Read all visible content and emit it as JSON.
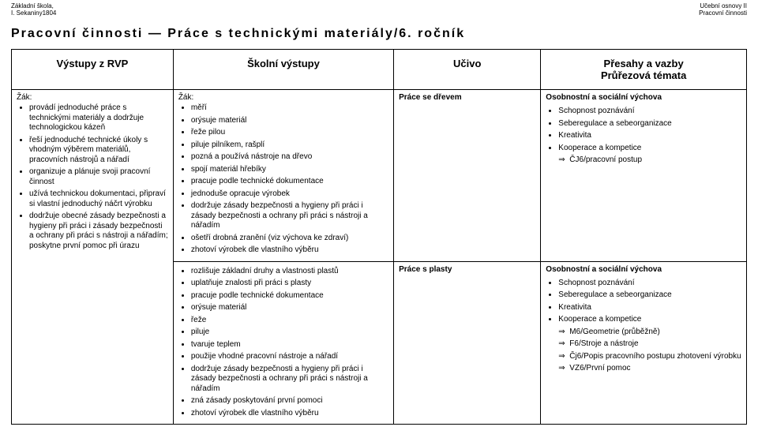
{
  "header": {
    "left_line1": "Základní škola,",
    "left_line2": "I. Sekaniny1804",
    "right_line1": "Učební osnovy II",
    "right_line2": "Pracovní činnosti"
  },
  "title": "Pracovní činnosti — Práce s technickými materiály/6. ročník",
  "columns": {
    "c0": "Výstupy z RVP",
    "c1": "Školní výstupy",
    "c2": "Učivo",
    "c3a": "Přesahy a vazby",
    "c3b": "Průřezová témata"
  },
  "rvp": {
    "lead": "Žák:",
    "items": [
      "provádí jednoduché práce s technickými materiály a dodržuje technologickou kázeň",
      "řeší jednoduché technické úkoly s vhodným výběrem materiálů, pracovních nástrojů a nářadí",
      "organizuje a plánuje svoji pracovní činnost",
      "užívá technickou dokumentaci, připraví si vlastní jednoduchý náčrt výrobku",
      "dodržuje obecné zásady bezpečnosti a hygieny při práci i zásady bezpečnosti a ochrany při práci s nástroji a nářadím; poskytne první pomoc při úrazu"
    ]
  },
  "skolni": {
    "lead": "Žák:",
    "block1": [
      "měří",
      "orýsuje materiál",
      "řeže pilou",
      "piluje pilníkem, rašplí",
      "pozná a používá nástroje na dřevo",
      "spojí materiál hřebíky",
      "pracuje podle technické dokumentace",
      "jednoduše opracuje výrobek",
      "dodržuje zásady bezpečnosti a hygieny při práci i zásady bezpečnosti a ochrany při práci s nástroji a nářadím",
      "ošetří drobná zranění (viz výchova ke zdraví)",
      "zhotoví výrobek dle vlastního výběru"
    ],
    "block2": [
      "rozlišuje základní druhy a vlastnosti plastů",
      "uplatňuje znalosti při práci s plasty",
      "pracuje podle technické dokumentace",
      "orýsuje materiál",
      "řeže",
      "piluje",
      "tvaruje teplem",
      "použije vhodné pracovní nástroje a nářadí",
      "dodržuje zásady bezpečnosti a hygieny při práci i zásady bezpečnosti a ochrany při práci s nástroji a nářadím",
      "zná zásady poskytování první pomoci",
      "zhotoví výrobek dle vlastního výběru"
    ]
  },
  "ucivo": {
    "r1": "Práce se dřevem",
    "r2": "Práce s plasty"
  },
  "presahy": {
    "r1_title": "Osobnostní a sociální výchova",
    "r1_bullets": [
      "Schopnost poznávání",
      "Seberegulace a sebeorganizace",
      "Kreativita",
      "Kooperace a kompetice"
    ],
    "r1_arrows": [
      "ČJ6/pracovní postup"
    ],
    "r2_title": "Osobnostní a sociální výchova",
    "r2_bullets": [
      "Schopnost poznávání",
      "Seberegulace a sebeorganizace",
      "Kreativita",
      "Kooperace a kompetice"
    ],
    "r2_arrows": [
      "M6/Geometrie (průběžně)",
      "F6/Stroje a nástroje",
      "Čj6/Popis pracovního postupu zhotovení výrobku",
      "VZ6/První pomoc"
    ]
  }
}
